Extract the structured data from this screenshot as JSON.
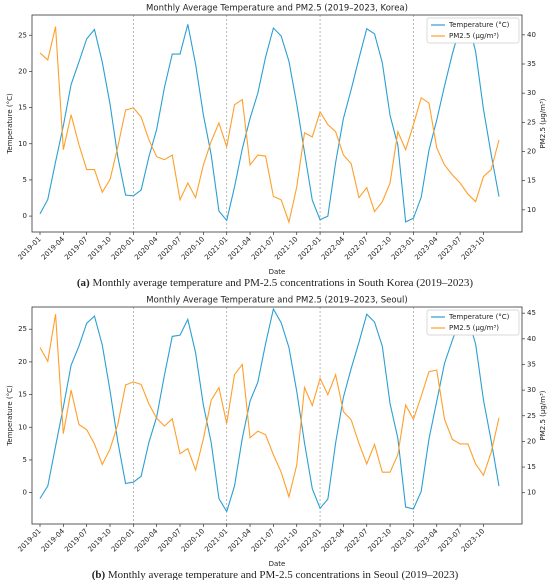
{
  "chart_data": [
    {
      "type": "line",
      "title": "Monthly Average Temperature and PM2.5 (2019–2023, Korea)",
      "x_label": "Date",
      "y_label": "Temperature (°C)",
      "y2_label": "PM2.5 (μg/m³)",
      "caption_label": "(a)",
      "caption": "Monthly average temperature and PM-2.5 concentrations in South Korea (2019–2023)",
      "categories": [
        "2019-01",
        null,
        null,
        "2019-04",
        null,
        null,
        "2019-07",
        null,
        null,
        "2019-10",
        null,
        null,
        "2020-01",
        null,
        null,
        "2020-04",
        null,
        null,
        "2020-07",
        null,
        null,
        "2020-10",
        null,
        null,
        "2021-01",
        null,
        null,
        "2021-04",
        null,
        null,
        "2021-07",
        null,
        null,
        "2021-10",
        null,
        null,
        "2022-01",
        null,
        null,
        "2022-04",
        null,
        null,
        "2022-07",
        null,
        null,
        "2022-10",
        null,
        null,
        "2023-01",
        null,
        null,
        "2023-04",
        null,
        null,
        "2023-07",
        null,
        null,
        "2023-10",
        null,
        null
      ],
      "series": [
        {
          "name": "Temperature (°C)",
          "color": "#2b9fd3",
          "values": [
            0.3,
            2.3,
            7.5,
            12.5,
            18.2,
            21.3,
            24.5,
            25.8,
            21.3,
            15.5,
            8.2,
            2.9,
            2.8,
            3.6,
            8.2,
            12.0,
            17.8,
            22.4,
            22.4,
            26.5,
            21.0,
            14.0,
            8.5,
            0.7,
            -0.6,
            4.0,
            9.3,
            13.5,
            17.0,
            22.0,
            26.0,
            24.9,
            21.4,
            15.5,
            8.8,
            2.2,
            -0.5,
            0.0,
            7.4,
            13.5,
            17.5,
            21.8,
            25.9,
            25.2,
            21.2,
            13.9,
            9.8,
            -0.8,
            -0.3,
            2.6,
            9.1,
            13.3,
            18.0,
            22.4,
            26.2,
            27.2,
            22.7,
            14.8,
            8.5,
            2.7
          ]
        },
        {
          "name": "PM2.5 (μg/m³)",
          "color": "#ff9f2a",
          "axis": "y2",
          "values": [
            36.9,
            35.7,
            41.4,
            20.3,
            26.3,
            21.2,
            16.9,
            16.9,
            13.0,
            15.2,
            20.8,
            27.1,
            27.5,
            25.9,
            22.0,
            19.1,
            18.6,
            19.4,
            11.7,
            14.6,
            12.1,
            17.7,
            21.7,
            24.9,
            20.8,
            28.0,
            28.9,
            17.7,
            19.4,
            19.2,
            12.3,
            11.7,
            7.9,
            13.9,
            23.2,
            22.5,
            26.8,
            24.6,
            23.4,
            19.4,
            17.9,
            12.1,
            13.8,
            9.7,
            11.4,
            14.6,
            23.4,
            20.3,
            24.6,
            29.2,
            28.3,
            20.6,
            17.7,
            16.0,
            14.6,
            12.7,
            11.4,
            15.7,
            16.9,
            22.0
          ]
        }
      ],
      "ylim": [
        -2.2,
        27.8
      ],
      "yticks": [
        0,
        5,
        10,
        15,
        20,
        25
      ],
      "y2lim": [
        6.2,
        43.4
      ],
      "y2ticks": [
        10,
        15,
        20,
        25,
        30,
        35,
        40
      ],
      "year_separators": true,
      "legend": "upper right"
    },
    {
      "type": "line",
      "title": "Monthly Average Temperature and PM2.5 (2019–2023, Seoul)",
      "x_label": "Date",
      "y_label": "Temperature (°C)",
      "y2_label": "PM2.5 (μg/m³)",
      "caption_label": "(b)",
      "caption": "Monthly average temperature and PM-2.5 concentrations in Seoul (2019–2023)",
      "categories": [
        "2019-01",
        null,
        null,
        "2019-04",
        null,
        null,
        "2019-07",
        null,
        null,
        "2019-10",
        null,
        null,
        "2020-01",
        null,
        null,
        "2020-04",
        null,
        null,
        "2020-07",
        null,
        null,
        "2020-10",
        null,
        null,
        "2021-01",
        null,
        null,
        "2021-04",
        null,
        null,
        "2021-07",
        null,
        null,
        "2021-10",
        null,
        null,
        "2022-01",
        null,
        null,
        "2022-04",
        null,
        null,
        "2022-07",
        null,
        null,
        "2022-10",
        null,
        null,
        "2023-01",
        null,
        null,
        "2023-04",
        null,
        null,
        "2023-07",
        null,
        null,
        "2023-10",
        null,
        null
      ],
      "series": [
        {
          "name": "Temperature (°C)",
          "color": "#2b9fd3",
          "values": [
            -0.9,
            1.0,
            7.1,
            13.1,
            19.5,
            22.4,
            25.9,
            27.0,
            22.6,
            15.6,
            7.8,
            1.4,
            1.6,
            2.5,
            7.7,
            11.6,
            18.0,
            23.9,
            24.1,
            26.5,
            21.4,
            13.4,
            7.7,
            -0.9,
            -2.9,
            1.0,
            8.3,
            14.0,
            16.9,
            22.8,
            28.1,
            26.0,
            22.2,
            15.5,
            7.6,
            0.6,
            -2.4,
            -1.0,
            7.6,
            14.6,
            19.0,
            23.0,
            27.3,
            26.1,
            22.4,
            13.6,
            8.3,
            -2.2,
            -2.5,
            0.2,
            8.2,
            14.0,
            19.8,
            23.3,
            26.4,
            26.8,
            22.7,
            14.2,
            7.9,
            1.0
          ]
        },
        {
          "name": "PM2.5 (μg/m³)",
          "color": "#ff9f2a",
          "axis": "y2",
          "values": [
            38.3,
            35.6,
            44.8,
            21.5,
            30.0,
            23.3,
            22.3,
            19.5,
            15.5,
            18.5,
            23.3,
            31.0,
            31.6,
            31.1,
            27.3,
            24.5,
            23.0,
            24.4,
            17.6,
            18.6,
            14.4,
            20.5,
            28.0,
            30.5,
            23.5,
            33.0,
            35.0,
            20.7,
            22.0,
            21.3,
            17.4,
            14.0,
            9.2,
            15.4,
            30.5,
            27.0,
            32.3,
            29.1,
            33.0,
            25.8,
            24.2,
            19.6,
            15.6,
            19.4,
            14.0,
            14.0,
            17.4,
            27.1,
            24.3,
            28.8,
            33.6,
            33.9,
            24.3,
            20.4,
            19.5,
            19.5,
            15.6,
            13.4,
            17.9,
            24.6
          ]
        }
      ],
      "ylim": [
        -4.8,
        28.4
      ],
      "yticks": [
        0,
        5,
        10,
        15,
        20,
        25
      ],
      "y2lim": [
        3.9,
        46.2
      ],
      "y2ticks": [
        10,
        15,
        20,
        25,
        30,
        35,
        40,
        45
      ],
      "year_separators": true,
      "legend": "upper right"
    }
  ]
}
